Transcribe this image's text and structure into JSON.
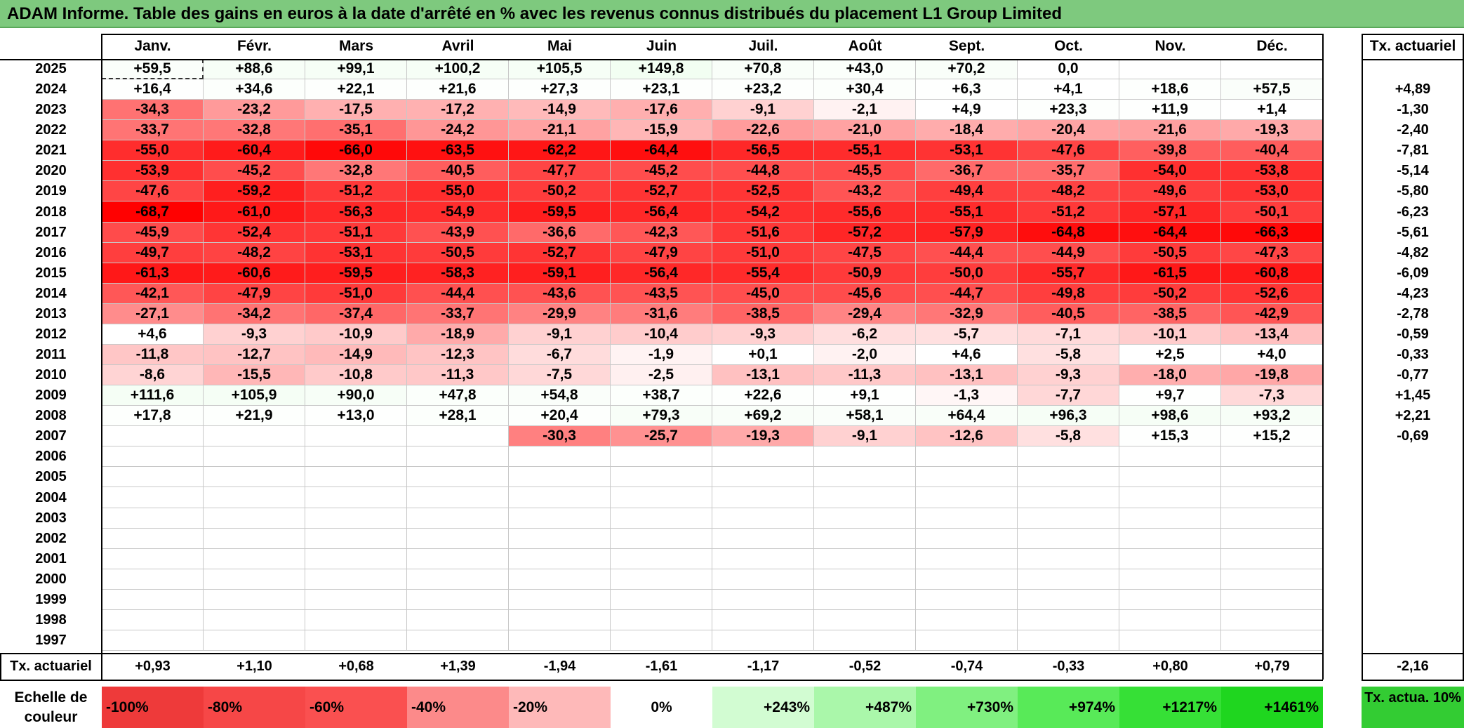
{
  "title": "ADAM Informe. Table des gains en euros à la date d'arrêté en % avec les revenus connus distribués du placement L1 Group Limited",
  "chart_data": {
    "type": "heatmap",
    "months": [
      "Janv.",
      "Févr.",
      "Mars",
      "Avril",
      "Mai",
      "Juin",
      "Juil.",
      "Août",
      "Sept.",
      "Oct.",
      "Nov.",
      "Déc."
    ],
    "tx_header": "Tx. actuariel",
    "years": [
      "2025",
      "2024",
      "2023",
      "2022",
      "2021",
      "2020",
      "2019",
      "2018",
      "2017",
      "2016",
      "2015",
      "2014",
      "2013",
      "2012",
      "2011",
      "2010",
      "2009",
      "2008",
      "2007",
      "2006",
      "2005",
      "2004",
      "2003",
      "2002",
      "2001",
      "2000",
      "1999",
      "1998",
      "1997"
    ],
    "values": [
      [
        "+59,5",
        "+88,6",
        "+99,1",
        "+100,2",
        "+105,5",
        "+149,8",
        "+70,8",
        "+43,0",
        "+70,2",
        "0,0",
        "",
        ""
      ],
      [
        "+16,4",
        "+34,6",
        "+22,1",
        "+21,6",
        "+27,3",
        "+23,1",
        "+23,2",
        "+30,4",
        "+6,3",
        "+4,1",
        "+18,6",
        "+57,5"
      ],
      [
        "-34,3",
        "-23,2",
        "-17,5",
        "-17,2",
        "-14,9",
        "-17,6",
        "-9,1",
        "-2,1",
        "+4,9",
        "+23,3",
        "+11,9",
        "+1,4"
      ],
      [
        "-33,7",
        "-32,8",
        "-35,1",
        "-24,2",
        "-21,1",
        "-15,9",
        "-22,6",
        "-21,0",
        "-18,4",
        "-20,4",
        "-21,6",
        "-19,3"
      ],
      [
        "-55,0",
        "-60,4",
        "-66,0",
        "-63,5",
        "-62,2",
        "-64,4",
        "-56,5",
        "-55,1",
        "-53,1",
        "-47,6",
        "-39,8",
        "-40,4"
      ],
      [
        "-53,9",
        "-45,2",
        "-32,8",
        "-40,5",
        "-47,7",
        "-45,2",
        "-44,8",
        "-45,5",
        "-36,7",
        "-35,7",
        "-54,0",
        "-53,8"
      ],
      [
        "-47,6",
        "-59,2",
        "-51,2",
        "-55,0",
        "-50,2",
        "-52,7",
        "-52,5",
        "-43,2",
        "-49,4",
        "-48,2",
        "-49,6",
        "-53,0"
      ],
      [
        "-68,7",
        "-61,0",
        "-56,3",
        "-54,9",
        "-59,5",
        "-56,4",
        "-54,2",
        "-55,6",
        "-55,1",
        "-51,2",
        "-57,1",
        "-50,1"
      ],
      [
        "-45,9",
        "-52,4",
        "-51,1",
        "-43,9",
        "-36,6",
        "-42,3",
        "-51,6",
        "-57,2",
        "-57,9",
        "-64,8",
        "-64,4",
        "-66,3"
      ],
      [
        "-49,7",
        "-48,2",
        "-53,1",
        "-50,5",
        "-52,7",
        "-47,9",
        "-51,0",
        "-47,5",
        "-44,4",
        "-44,9",
        "-50,5",
        "-47,3"
      ],
      [
        "-61,3",
        "-60,6",
        "-59,5",
        "-58,3",
        "-59,1",
        "-56,4",
        "-55,4",
        "-50,9",
        "-50,0",
        "-55,7",
        "-61,5",
        "-60,8"
      ],
      [
        "-42,1",
        "-47,9",
        "-51,0",
        "-44,4",
        "-43,6",
        "-43,5",
        "-45,0",
        "-45,6",
        "-44,7",
        "-49,8",
        "-50,2",
        "-52,6"
      ],
      [
        "-27,1",
        "-34,2",
        "-37,4",
        "-33,7",
        "-29,9",
        "-31,6",
        "-38,5",
        "-29,4",
        "-32,9",
        "-40,5",
        "-38,5",
        "-42,9"
      ],
      [
        "+4,6",
        "-9,3",
        "-10,9",
        "-18,9",
        "-9,1",
        "-10,4",
        "-9,3",
        "-6,2",
        "-5,7",
        "-7,1",
        "-10,1",
        "-13,4"
      ],
      [
        "-11,8",
        "-12,7",
        "-14,9",
        "-12,3",
        "-6,7",
        "-1,9",
        "+0,1",
        "-2,0",
        "+4,6",
        "-5,8",
        "+2,5",
        "+4,0"
      ],
      [
        "-8,6",
        "-15,5",
        "-10,8",
        "-11,3",
        "-7,5",
        "-2,5",
        "-13,1",
        "-11,3",
        "-13,1",
        "-9,3",
        "-18,0",
        "-19,8"
      ],
      [
        "+111,6",
        "+105,9",
        "+90,0",
        "+47,8",
        "+54,8",
        "+38,7",
        "+22,6",
        "+9,1",
        "-1,3",
        "-7,7",
        "+9,7",
        "-7,3"
      ],
      [
        "+17,8",
        "+21,9",
        "+13,0",
        "+28,1",
        "+20,4",
        "+79,3",
        "+69,2",
        "+58,1",
        "+64,4",
        "+96,3",
        "+98,6",
        "+93,2"
      ],
      [
        "",
        "",
        "",
        "",
        "-30,3",
        "-25,7",
        "-19,3",
        "-9,1",
        "-12,6",
        "-5,8",
        "+15,3",
        "+15,2"
      ],
      [
        "",
        "",
        "",
        "",
        "",
        "",
        "",
        "",
        "",
        "",
        "",
        ""
      ],
      [
        "",
        "",
        "",
        "",
        "",
        "",
        "",
        "",
        "",
        "",
        "",
        ""
      ],
      [
        "",
        "",
        "",
        "",
        "",
        "",
        "",
        "",
        "",
        "",
        "",
        ""
      ],
      [
        "",
        "",
        "",
        "",
        "",
        "",
        "",
        "",
        "",
        "",
        "",
        ""
      ],
      [
        "",
        "",
        "",
        "",
        "",
        "",
        "",
        "",
        "",
        "",
        "",
        ""
      ],
      [
        "",
        "",
        "",
        "",
        "",
        "",
        "",
        "",
        "",
        "",
        "",
        ""
      ],
      [
        "",
        "",
        "",
        "",
        "",
        "",
        "",
        "",
        "",
        "",
        "",
        ""
      ],
      [
        "",
        "",
        "",
        "",
        "",
        "",
        "",
        "",
        "",
        "",
        "",
        ""
      ],
      [
        "",
        "",
        "",
        "",
        "",
        "",
        "",
        "",
        "",
        "",
        "",
        ""
      ],
      [
        "",
        "",
        "",
        "",
        "",
        "",
        "",
        "",
        "",
        "",
        "",
        ""
      ]
    ],
    "tx_actuariel_by_year": [
      "",
      "+4,89",
      "-1,30",
      "-2,40",
      "-7,81",
      "-5,14",
      "-5,80",
      "-6,23",
      "-5,61",
      "-4,82",
      "-6,09",
      "-4,23",
      "-2,78",
      "-0,59",
      "-0,33",
      "-0,77",
      "+1,45",
      "+2,21",
      "-0,69",
      "",
      "",
      "",
      "",
      "",
      "",
      "",
      "",
      "",
      ""
    ],
    "footer_label": "Tx. actuariel",
    "tx_actuariel_by_month": [
      "+0,93",
      "+1,10",
      "+0,68",
      "+1,39",
      "-1,94",
      "-1,61",
      "-1,17",
      "-0,52",
      "-0,74",
      "-0,33",
      "+0,80",
      "+0,79"
    ],
    "tx_actuariel_total": "-2,16",
    "legend": {
      "label": "Echelle de couleur",
      "steps": [
        "-100%",
        "-80%",
        "-60%",
        "-40%",
        "-20%",
        "0%",
        "+243%",
        "+487%",
        "+730%",
        "+974%",
        "+1217%",
        "+1461%"
      ],
      "step_colors": [
        "#ee3a3a",
        "#f64747",
        "#fa5050",
        "#fc8a8a",
        "#feb9b9",
        "#ffffff",
        "#d2fcd2",
        "#aaf7aa",
        "#80f080",
        "#58ea58",
        "#36e036",
        "#1fd61f"
      ],
      "tx_label": "Tx. actua. 10%",
      "tx_color": "#33cc33"
    }
  }
}
